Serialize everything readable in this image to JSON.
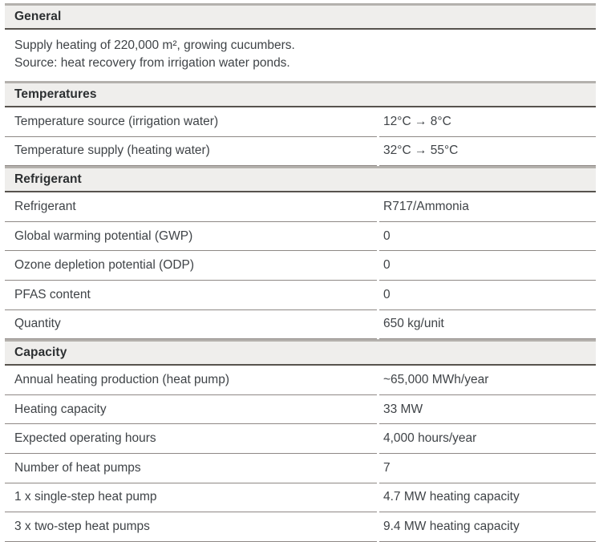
{
  "colors": {
    "page_bg": "#ffffff",
    "header_bg": "#efeeec",
    "header_top_border": "#b4b1ad",
    "header_bottom_border": "#57534e",
    "row_separator": "#8e8885",
    "header_text": "#2c2f31",
    "body_text": "#3f4347"
  },
  "document": {
    "sections": [
      {
        "id": "general",
        "title": "General",
        "type": "text",
        "lines": [
          "Supply heating of 220,000 m², growing cucumbers.",
          "Source: heat recovery from irrigation water ponds."
        ]
      },
      {
        "id": "temperatures",
        "title": "Temperatures",
        "type": "rows",
        "rows": [
          {
            "label": "Temperature source (irrigation water)",
            "value": "12°C → 8°C"
          },
          {
            "label": "Temperature supply (heating water)",
            "value": "32°C → 55°C"
          }
        ]
      },
      {
        "id": "refrigerant",
        "title": "Refrigerant",
        "type": "rows",
        "rows": [
          {
            "label": "Refrigerant",
            "value": "R717/Ammonia"
          },
          {
            "label": "Global warming potential (GWP)",
            "value": "0"
          },
          {
            "label": "Ozone depletion potential (ODP)",
            "value": "0"
          },
          {
            "label": "PFAS content",
            "value": "0"
          },
          {
            "label": "Quantity",
            "value": "650 kg/unit"
          }
        ]
      },
      {
        "id": "capacity",
        "title": "Capacity",
        "type": "rows",
        "rows": [
          {
            "label": "Annual heating production (heat pump)",
            "value": "~65,000 MWh/year"
          },
          {
            "label": "Heating capacity",
            "value": "33 MW"
          },
          {
            "label": "Expected operating hours",
            "value": "4,000 hours/year"
          },
          {
            "label": "Number of heat pumps",
            "value": "7"
          },
          {
            "label": "1 x single-step heat pump",
            "value": "4.7 MW heating capacity"
          },
          {
            "label": "3 x two-step heat pumps",
            "value": "9.4 MW heating capacity"
          }
        ]
      }
    ]
  }
}
